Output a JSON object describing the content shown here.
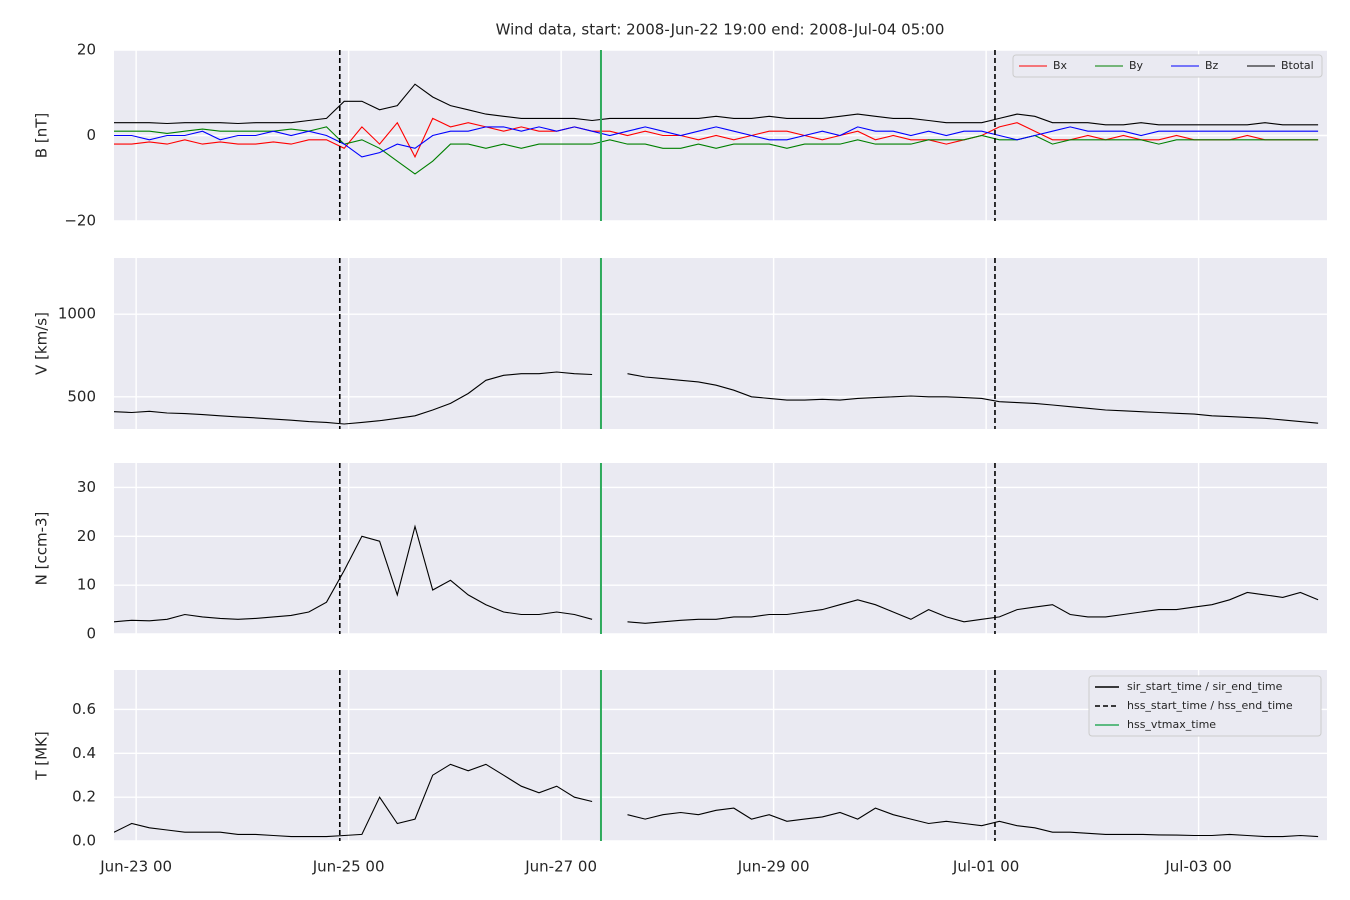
{
  "chart_data": {
    "type": "line",
    "title": "Wind data, start: 2008-Jun-22 19:00  end: 2008-Jul-04 05:00",
    "x": [
      "Jun-22 19",
      "Jun-22 23",
      "Jun-23 03",
      "Jun-23 07",
      "Jun-23 11",
      "Jun-23 15",
      "Jun-23 19",
      "Jun-23 23",
      "Jun-24 03",
      "Jun-24 07",
      "Jun-24 11",
      "Jun-24 15",
      "Jun-24 19",
      "Jun-24 23",
      "Jun-25 03",
      "Jun-25 07",
      "Jun-25 11",
      "Jun-25 15",
      "Jun-25 19",
      "Jun-25 23",
      "Jun-26 03",
      "Jun-26 07",
      "Jun-26 11",
      "Jun-26 15",
      "Jun-26 19",
      "Jun-26 23",
      "Jun-27 03",
      "Jun-27 07",
      "Jun-27 11",
      "Jun-27 15",
      "Jun-27 19",
      "Jun-27 23",
      "Jun-28 03",
      "Jun-28 07",
      "Jun-28 11",
      "Jun-28 15",
      "Jun-28 19",
      "Jun-28 23",
      "Jun-29 03",
      "Jun-29 07",
      "Jun-29 11",
      "Jun-29 15",
      "Jun-29 19",
      "Jun-29 23",
      "Jun-30 03",
      "Jun-30 07",
      "Jun-30 11",
      "Jun-30 15",
      "Jun-30 19",
      "Jun-30 23",
      "Jul-01 03",
      "Jul-01 07",
      "Jul-01 11",
      "Jul-01 15",
      "Jul-01 19",
      "Jul-01 23",
      "Jul-02 03",
      "Jul-02 07",
      "Jul-02 11",
      "Jul-02 15",
      "Jul-02 19",
      "Jul-02 23",
      "Jul-03 03",
      "Jul-03 07",
      "Jul-03 11",
      "Jul-03 15",
      "Jul-03 19",
      "Jul-03 23",
      "Jul-04 03"
    ],
    "xlim": [
      "Jun-22 19",
      "Jul-04 05"
    ],
    "xticks": [
      "Jun-23 00",
      "Jun-25 00",
      "Jun-27 00",
      "Jun-29 00",
      "Jul-01 00",
      "Jul-03 00"
    ],
    "grid": true,
    "panels": [
      {
        "ylabel": "B [nT]",
        "ylim": [
          -20,
          20
        ],
        "yticks": [
          {
            "value": -20,
            "label": "−20"
          },
          0,
          20
        ],
        "legend": "upper right",
        "series": [
          {
            "name": "Bx",
            "color": "#ff0000",
            "values": [
              -2,
              -2,
              -1.5,
              -2,
              -1,
              -2,
              -1.5,
              -2,
              -2,
              -1.5,
              -2,
              -1,
              -1,
              -3,
              2,
              -2,
              3,
              -5,
              4,
              2,
              3,
              2,
              1,
              2,
              1,
              1,
              2,
              1,
              1,
              0,
              1,
              0,
              0,
              -1,
              0,
              -1,
              0,
              1,
              1,
              0,
              -1,
              0,
              1,
              -1,
              0,
              -1,
              -1,
              -2,
              -1,
              0,
              2,
              3,
              1,
              -1,
              -1,
              0,
              -1,
              0,
              -1,
              -1,
              0,
              -1,
              -1,
              -1,
              0,
              -1,
              -1,
              -1,
              -1
            ]
          },
          {
            "name": "By",
            "color": "#008000",
            "values": [
              1,
              1,
              1,
              0.5,
              1,
              1.5,
              1,
              1,
              1,
              1,
              1.5,
              1,
              2,
              -2,
              -1,
              -3,
              -6,
              -9,
              -6,
              -2,
              -2,
              -3,
              -2,
              -3,
              -2,
              -2,
              -2,
              -2,
              -1,
              -2,
              -2,
              -3,
              -3,
              -2,
              -3,
              -2,
              -2,
              -2,
              -3,
              -2,
              -2,
              -2,
              -1,
              -2,
              -2,
              -2,
              -1,
              -1,
              -1,
              0,
              -1,
              -1,
              0,
              -2,
              -1,
              -1,
              -1,
              -1,
              -1,
              -2,
              -1,
              -1,
              -1,
              -1,
              -1,
              -1,
              -1,
              -1,
              -1
            ]
          },
          {
            "name": "Bz",
            "color": "#0000ff",
            "values": [
              0,
              0,
              -1,
              0,
              0,
              1,
              -1,
              0,
              0,
              1,
              0,
              1,
              0,
              -2,
              -5,
              -4,
              -2,
              -3,
              0,
              1,
              1,
              2,
              2,
              1,
              2,
              1,
              2,
              1,
              0,
              1,
              2,
              1,
              0,
              1,
              2,
              1,
              0,
              -1,
              -1,
              0,
              1,
              0,
              2,
              1,
              1,
              0,
              1,
              0,
              1,
              1,
              0,
              -1,
              0,
              1,
              2,
              1,
              1,
              1,
              0,
              1,
              1,
              1,
              1,
              1,
              1,
              1,
              1,
              1,
              1
            ]
          },
          {
            "name": "Btotal",
            "color": "#000000",
            "values": [
              3,
              3,
              3,
              2.8,
              3,
              3,
              3,
              2.8,
              3,
              3,
              3,
              3.5,
              4,
              8,
              8,
              6,
              7,
              12,
              9,
              7,
              6,
              5,
              4.5,
              4,
              4,
              4,
              4,
              3.5,
              4,
              4,
              4,
              4,
              4,
              4,
              4.5,
              4,
              4,
              4.5,
              4,
              4,
              4,
              4.5,
              5,
              4.5,
              4,
              4,
              3.5,
              3,
              3,
              3,
              4,
              5,
              4.5,
              3,
              3,
              3,
              2.5,
              2.5,
              3,
              2.5,
              2.5,
              2.5,
              2.5,
              2.5,
              2.5,
              3,
              2.5,
              2.5,
              2.5
            ]
          }
        ]
      },
      {
        "ylabel": "V [km/s]",
        "ylim": [
          305,
          1340
        ],
        "yticks": [
          500,
          1000
        ],
        "series": [
          {
            "color": "#000000",
            "values": [
              410,
              405,
              412,
              402,
              398,
              392,
              385,
              378,
              372,
              365,
              358,
              350,
              345,
              335,
              345,
              355,
              370,
              385,
              420,
              460,
              520,
              600,
              630,
              640,
              640,
              650,
              640,
              635,
              null,
              640,
              620,
              610,
              600,
              590,
              570,
              540,
              500,
              490,
              480,
              480,
              485,
              480,
              490,
              495,
              500,
              505,
              500,
              500,
              495,
              490,
              470,
              465,
              460,
              450,
              440,
              430,
              420,
              415,
              410,
              405,
              400,
              395,
              385,
              380,
              375,
              370,
              360,
              350,
              340
            ]
          }
        ]
      },
      {
        "ylabel": "N [ccm-3]",
        "ylim": [
          0,
          35
        ],
        "yticks": [
          0,
          10,
          20,
          30
        ],
        "series": [
          {
            "color": "#000000",
            "values": [
              2.5,
              2.8,
              2.7,
              3,
              4,
              3.5,
              3.2,
              3,
              3.2,
              3.5,
              3.8,
              4.5,
              6.5,
              13,
              20,
              19,
              8,
              22,
              9,
              11,
              8,
              6,
              4.5,
              4,
              4,
              4.5,
              4,
              3,
              null,
              2.5,
              2.2,
              2.5,
              2.8,
              3,
              3,
              3.5,
              3.5,
              4,
              4,
              4.5,
              5,
              6,
              7,
              6,
              4.5,
              3,
              5,
              3.5,
              2.5,
              3,
              3.5,
              5,
              5.5,
              6,
              4,
              3.5,
              3.5,
              4,
              4.5,
              5,
              5,
              5.5,
              6,
              7,
              8.5,
              8,
              7.5,
              8.5,
              7
            ]
          }
        ]
      },
      {
        "ylabel": "T [MK]",
        "ylim": [
          0,
          0.78
        ],
        "yticks": [
          {
            "value": 0,
            "label": "0.0"
          },
          0.2,
          0.4,
          0.6
        ],
        "legend": "upper right",
        "series": [
          {
            "color": "#000000",
            "values": [
              0.04,
              0.08,
              0.06,
              0.05,
              0.04,
              0.04,
              0.04,
              0.03,
              0.03,
              0.025,
              0.02,
              0.02,
              0.02,
              0.025,
              0.03,
              0.2,
              0.08,
              0.1,
              0.3,
              0.35,
              0.32,
              0.35,
              0.3,
              0.25,
              0.22,
              0.25,
              0.2,
              0.18,
              null,
              0.12,
              0.1,
              0.12,
              0.13,
              0.12,
              0.14,
              0.15,
              0.1,
              0.12,
              0.09,
              0.1,
              0.11,
              0.13,
              0.1,
              0.15,
              0.12,
              0.1,
              0.08,
              0.09,
              0.08,
              0.07,
              0.09,
              0.07,
              0.06,
              0.04,
              0.04,
              0.035,
              0.03,
              0.03,
              0.03,
              0.028,
              0.027,
              0.025,
              0.025,
              0.03,
              0.025,
              0.02,
              0.02,
              0.025,
              0.02
            ]
          }
        ]
      }
    ],
    "markers": [
      {
        "name": "sir_start_time / sir_end_time",
        "color": "#000000",
        "style": "solid",
        "x": []
      },
      {
        "name": "hss_start_time / hss_end_time",
        "color": "#000000",
        "style": "dashed",
        "x": [
          "Jun-24 22",
          "Jul-01 02"
        ]
      },
      {
        "name": "hss_vtmax_time",
        "color": "#2eaa5c",
        "style": "solid",
        "x": [
          "Jun-27 09"
        ]
      }
    ]
  }
}
